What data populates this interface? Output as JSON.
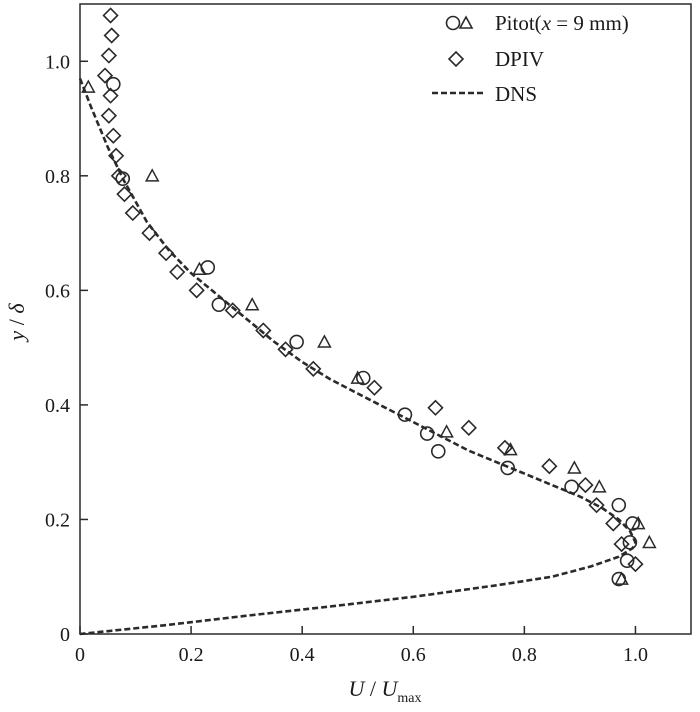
{
  "chart_data": {
    "type": "scatter",
    "title": "",
    "xlabel": {
      "main": "U",
      "sep": " / ",
      "var": "U",
      "sub": "max"
    },
    "ylabel": {
      "main": "y",
      "sep": " / ",
      "var": "δ"
    },
    "xlim": [
      0,
      1.1
    ],
    "ylim": [
      0,
      1.1
    ],
    "xticks": [
      "0",
      "0.2",
      "0.4",
      "0.6",
      "0.8",
      "1.0"
    ],
    "xtick_values": [
      0,
      0.2,
      0.4,
      0.6,
      0.8,
      1.0
    ],
    "yticks": [
      "0",
      "0.2",
      "0.4",
      "0.6",
      "0.8",
      "1.0"
    ],
    "ytick_values": [
      0,
      0.2,
      0.4,
      0.6,
      0.8,
      1.0
    ],
    "grid": false,
    "legend_position": "top-right",
    "legend": [
      {
        "label_pre": "Pitot(",
        "label_var": "x",
        "label_post": " = 9 mm)",
        "marker": "circle+triangle"
      },
      {
        "label": "DPIV",
        "marker": "diamond"
      },
      {
        "label": "DNS",
        "marker": "dashed-line"
      }
    ],
    "series": [
      {
        "name": "Pitot circles",
        "marker": "circle",
        "points": [
          [
            0.06,
            0.96
          ],
          [
            0.077,
            0.795
          ],
          [
            0.23,
            0.64
          ],
          [
            0.25,
            0.575
          ],
          [
            0.39,
            0.51
          ],
          [
            0.51,
            0.447
          ],
          [
            0.585,
            0.383
          ],
          [
            0.625,
            0.35
          ],
          [
            0.645,
            0.319
          ],
          [
            0.77,
            0.29
          ],
          [
            0.885,
            0.257
          ],
          [
            0.97,
            0.225
          ],
          [
            0.995,
            0.193
          ],
          [
            0.99,
            0.16
          ],
          [
            0.985,
            0.128
          ],
          [
            0.97,
            0.096
          ]
        ]
      },
      {
        "name": "Pitot triangles",
        "marker": "triangle",
        "points": [
          [
            0.015,
            0.955
          ],
          [
            0.13,
            0.8
          ],
          [
            0.215,
            0.637
          ],
          [
            0.31,
            0.575
          ],
          [
            0.44,
            0.51
          ],
          [
            0.5,
            0.447
          ],
          [
            0.66,
            0.353
          ],
          [
            0.775,
            0.322
          ],
          [
            0.89,
            0.29
          ],
          [
            0.935,
            0.257
          ],
          [
            1.005,
            0.193
          ],
          [
            1.025,
            0.16
          ],
          [
            0.975,
            0.096
          ]
        ]
      },
      {
        "name": "DPIV",
        "marker": "diamond",
        "points": [
          [
            0.055,
            1.08
          ],
          [
            0.057,
            1.045
          ],
          [
            0.052,
            1.01
          ],
          [
            0.045,
            0.975
          ],
          [
            0.055,
            0.94
          ],
          [
            0.052,
            0.905
          ],
          [
            0.06,
            0.87
          ],
          [
            0.065,
            0.835
          ],
          [
            0.07,
            0.8
          ],
          [
            0.08,
            0.768
          ],
          [
            0.095,
            0.735
          ],
          [
            0.125,
            0.7
          ],
          [
            0.155,
            0.665
          ],
          [
            0.175,
            0.632
          ],
          [
            0.21,
            0.6
          ],
          [
            0.275,
            0.565
          ],
          [
            0.33,
            0.53
          ],
          [
            0.37,
            0.497
          ],
          [
            0.42,
            0.463
          ],
          [
            0.53,
            0.43
          ],
          [
            0.64,
            0.395
          ],
          [
            0.7,
            0.36
          ],
          [
            0.765,
            0.325
          ],
          [
            0.845,
            0.293
          ],
          [
            0.91,
            0.26
          ],
          [
            0.93,
            0.225
          ],
          [
            0.96,
            0.193
          ],
          [
            0.975,
            0.157
          ],
          [
            1.0,
            0.122
          ]
        ]
      },
      {
        "name": "DNS",
        "marker": "dashed-line",
        "points": [
          [
            0.0,
            0.97
          ],
          [
            0.02,
            0.92
          ],
          [
            0.05,
            0.85
          ],
          [
            0.08,
            0.79
          ],
          [
            0.12,
            0.72
          ],
          [
            0.16,
            0.67
          ],
          [
            0.2,
            0.63
          ],
          [
            0.25,
            0.59
          ],
          [
            0.3,
            0.55
          ],
          [
            0.35,
            0.51
          ],
          [
            0.4,
            0.475
          ],
          [
            0.45,
            0.445
          ],
          [
            0.5,
            0.42
          ],
          [
            0.55,
            0.395
          ],
          [
            0.6,
            0.37
          ],
          [
            0.65,
            0.345
          ],
          [
            0.7,
            0.32
          ],
          [
            0.75,
            0.3
          ],
          [
            0.8,
            0.28
          ],
          [
            0.85,
            0.26
          ],
          [
            0.9,
            0.24
          ],
          [
            0.94,
            0.22
          ],
          [
            0.97,
            0.2
          ],
          [
            0.99,
            0.18
          ],
          [
            1.0,
            0.16
          ],
          [
            0.995,
            0.15
          ],
          [
            0.97,
            0.135
          ],
          [
            0.92,
            0.118
          ],
          [
            0.85,
            0.1
          ],
          [
            0.75,
            0.085
          ],
          [
            0.6,
            0.065
          ],
          [
            0.45,
            0.048
          ],
          [
            0.3,
            0.032
          ],
          [
            0.15,
            0.015
          ],
          [
            0.0,
            0.0
          ]
        ]
      }
    ]
  }
}
